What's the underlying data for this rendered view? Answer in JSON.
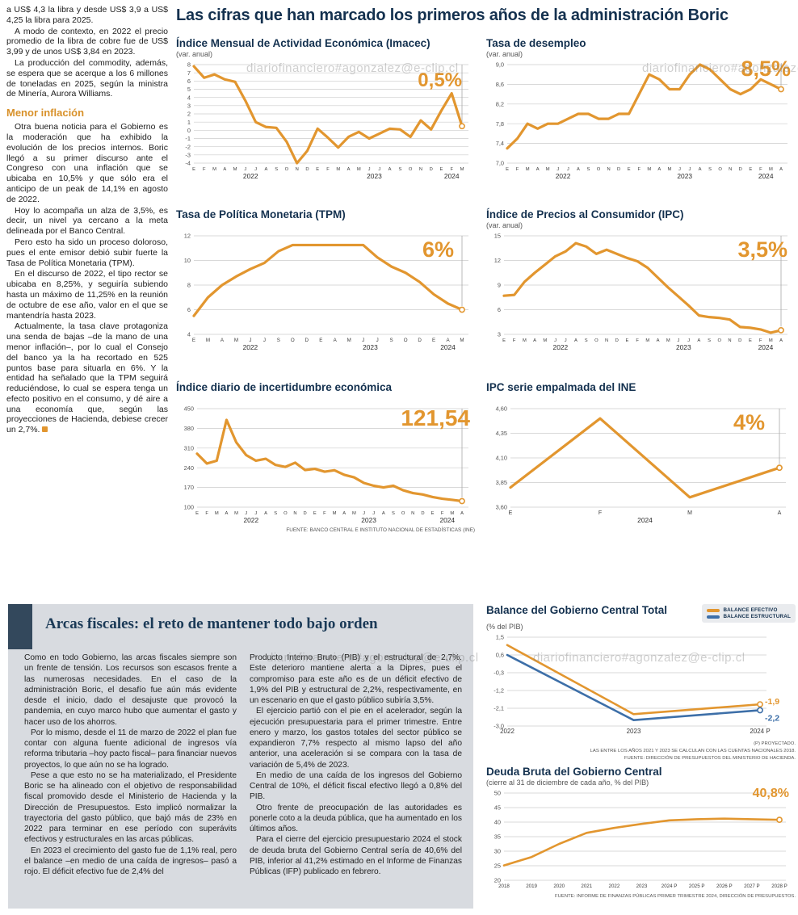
{
  "watermark": {
    "text": "diariofinanciero#agonzalez@e-clip.cl"
  },
  "colors": {
    "accent": "#E2962F",
    "navy": "#14314F",
    "blue": "#3D6FA8"
  },
  "main_title": "Las cifras que han marcado los primeros años de la administración Boric",
  "article": {
    "paragraphs": [
      "a US$ 4,3 la libra y desde US$ 3,9 a US$ 4,25 la libra para 2025.",
      "A modo de contexto, en 2022 el precio promedio de la libra de cobre fue de US$ 3,99 y de unos US$ 3,84 en 2023.",
      "La producción del commodity, además, se espera que se acerque a los 6 millones de toneladas en 2025, según la ministra de Minería, Aurora Williams."
    ],
    "heading": "Menor inflación",
    "paragraphs2": [
      "Otra buena noticia para el Gobierno es la moderación que ha exhibido la evolución de los precios internos. Boric llegó a su primer discurso ante el Congreso con una inflación que se ubicaba en 10,5% y que sólo era el anticipo de un peak de 14,1% en agosto de 2022.",
      "Hoy lo acompaña un alza de 3,5%, es decir, un nivel ya cercano a la meta delineada por el Banco Central.",
      "Pero esto ha sido un proceso doloroso, pues el ente emisor debió subir fuerte la Tasa de Política Monetaria (TPM).",
      "En el discurso de 2022, el tipo rector se ubicaba en 8,25%, y seguiría subiendo hasta un máximo de 11,25% en la reunión de octubre de ese año, valor en el que se mantendría hasta 2023.",
      "Actualmente, la tasa clave protagoniza una senda de bajas –de la mano de una menor inflación–, por lo cual el Consejo del banco ya la ha recortado en 525 puntos base para situarla en 6%. Y la entidad ha señalado que la TPM seguirá reduciéndose, lo cual se espera tenga un efecto positivo en el consumo, y dé aire a una economía que, según las proyecciones de Hacienda, debiese crecer un 2,7%."
    ]
  },
  "source_top": "FUENTE: BANCO CENTRAL E INSTITUTO NACIONAL DE ESTADÍSTICAS (INE)",
  "fiscal_box": {
    "title": "Arcas fiscales: el reto de mantener todo bajo orden",
    "col1": [
      "Como en todo Gobierno, las arcas fiscales siempre son un frente de tensión. Los recursos son escasos frente a las numerosas necesidades. En el caso de la administración Boric, el desafío fue aún más evidente desde el inicio, dado el desajuste que provocó la pandemia, en cuyo marco hubo que aumentar el gasto y hacer uso de los ahorros.",
      "Por lo mismo, desde el 11 de marzo de 2022 el plan fue contar con alguna fuente adicional de ingresos vía reforma tributaria –hoy pacto fiscal– para financiar nuevos proyectos, lo que aún no se ha logrado.",
      "Pese a que esto no se ha materializado, el Presidente Boric se ha alineado con el objetivo de responsabilidad fiscal promovido desde el Ministerio de Hacienda y la Dirección de Presupuestos. Esto implicó normalizar la trayectoria del gasto público, que bajó más de 23% en 2022 para terminar en ese período con superávits efectivos y estructurales en las arcas públicas.",
      "En 2023 el crecimiento del gasto fue de 1,1% real, pero el balance –en medio de una caída de ingresos– pasó a rojo. El déficit efectivo fue de 2,4% del"
    ],
    "col2": [
      "Producto Interno Bruto (PIB) y el estructural de 2,7%. Este deterioro mantiene alerta a la Dipres, pues el compromiso para este año es de un déficit efectivo de 1,9% del PIB y estructural de 2,2%, respectivamente, en un escenario en que el gasto público subiría 3,5%.",
      "El ejercicio partió con el pie en el acelerador, según la ejecución presupuestaria para el primer trimestre. Entre enero y marzo, los gastos totales del sector público se expandieron 7,7% respecto al mismo lapso del año anterior, una aceleración si se compara con la tasa de variación de 5,4% de 2023.",
      "En medio de una caída de los ingresos del Gobierno Central de 10%, el déficit fiscal efectivo llegó a 0,8% del PIB.",
      "Otro frente de preocupación de las autoridades es ponerle coto a la deuda pública, que ha aumentado en los últimos años.",
      "Para el cierre del ejercicio presupuestario 2024 el stock de deuda bruta del Gobierno Central sería de 40,6% del PIB, inferior al 41,2% estimado en el Informe de Finanzas Públicas (IFP) publicado en febrero."
    ]
  },
  "legend": [
    {
      "label": "BALANCE EFECTIVO",
      "color": "#E2962F"
    },
    {
      "label": "BALANCE ESTRUCTURAL",
      "color": "#3D6FA8"
    }
  ],
  "balance_notes": [
    "(P) PROYECTADO.",
    "LAS ENTRE LOS AÑOS 2021 Y 2023 SE CALCULAN  CON LAS CUENTAS NACIONALES 2018.",
    "FUENTE: DIRECCIÓN DE PRESUPUESTOS DEL MINISTERIO DE HACIENDA."
  ],
  "deuda_note": "FUENTE: INFORME DE FINANZAS PÚBLICAS PRIMER TRIMESTRE 2024, DIRECCIÓN DE PRESUPUESTOS.",
  "chart_data": [
    {
      "type": "line",
      "title": "Índice Mensual de Actividad Económica (Imacec)",
      "subtitle": "(var. anual)",
      "big_value": "0,5%",
      "ylim": [
        -4,
        8
      ],
      "ytick_values": [
        8,
        7,
        6,
        5,
        4,
        3,
        2,
        1,
        0,
        -1,
        -2,
        -3,
        -4
      ],
      "ytick_labels": [
        "8",
        "7",
        "6",
        "5",
        "4",
        "3",
        "2",
        "1",
        "0",
        "-1",
        "-2",
        "-3",
        "-4"
      ],
      "x": [
        "E",
        "F",
        "M",
        "A",
        "M",
        "J",
        "J",
        "A",
        "S",
        "O",
        "N",
        "D",
        "E",
        "F",
        "M",
        "A",
        "M",
        "J",
        "J",
        "A",
        "S",
        "O",
        "N",
        "D",
        "E",
        "F",
        "M"
      ],
      "year_ranges": [
        {
          "label": "2022",
          "from": 0,
          "to": 11
        },
        {
          "label": "2023",
          "from": 12,
          "to": 23
        },
        {
          "label": "2024",
          "from": 24,
          "to": 26
        }
      ],
      "series": [
        {
          "name": "Imacec",
          "color": "#E2962F",
          "values": [
            7.8,
            6.4,
            6.8,
            6.2,
            5.9,
            3.6,
            1.0,
            0.4,
            0.3,
            -1.4,
            -4.0,
            -2.5,
            0.2,
            -0.9,
            -2.1,
            -0.8,
            -0.2,
            -1.0,
            -0.4,
            0.2,
            0.1,
            -0.8,
            1.2,
            0.1,
            2.4,
            4.5,
            0.5
          ]
        }
      ]
    },
    {
      "type": "line",
      "title": "Tasa de desempleo",
      "subtitle": "(var. anual)",
      "big_value": "8,5%",
      "ylim": [
        7.0,
        9.0
      ],
      "ytick_values": [
        9.0,
        8.6,
        8.2,
        7.8,
        7.4,
        7.0
      ],
      "ytick_labels": [
        "9,0",
        "8,6",
        "8,2",
        "7,8",
        "7,4",
        "7,0"
      ],
      "x": [
        "E",
        "F",
        "M",
        "A",
        "M",
        "J",
        "J",
        "A",
        "S",
        "O",
        "N",
        "D",
        "E",
        "F",
        "M",
        "A",
        "M",
        "J",
        "J",
        "A",
        "S",
        "O",
        "N",
        "D",
        "E",
        "F",
        "M",
        "A"
      ],
      "year_ranges": [
        {
          "label": "2022",
          "from": 0,
          "to": 11
        },
        {
          "label": "2023",
          "from": 12,
          "to": 23
        },
        {
          "label": "2024",
          "from": 24,
          "to": 27
        }
      ],
      "series": [
        {
          "name": "Desempleo",
          "color": "#E2962F",
          "values": [
            7.3,
            7.5,
            7.8,
            7.7,
            7.8,
            7.8,
            7.9,
            8.0,
            8.0,
            7.9,
            7.9,
            8.0,
            8.0,
            8.4,
            8.8,
            8.7,
            8.5,
            8.5,
            8.8,
            9.0,
            8.9,
            8.7,
            8.5,
            8.4,
            8.5,
            8.7,
            8.6,
            8.5
          ]
        }
      ]
    },
    {
      "type": "line",
      "title": "Tasa de Política Monetaria (TPM)",
      "subtitle": "",
      "big_value": "6%",
      "ylim": [
        4,
        12
      ],
      "ytick_values": [
        12,
        10,
        8,
        6,
        4
      ],
      "ytick_labels": [
        "12",
        "10",
        "8",
        "6",
        "4"
      ],
      "x": [
        "E",
        "M",
        "A",
        "M",
        "J",
        "J",
        "S",
        "O",
        "D",
        "E",
        "A",
        "M",
        "J",
        "J",
        "S",
        "O",
        "D",
        "E",
        "A",
        "M"
      ],
      "year_ranges": [
        {
          "label": "2022",
          "from": 0,
          "to": 8
        },
        {
          "label": "2023",
          "from": 9,
          "to": 16
        },
        {
          "label": "2024",
          "from": 17,
          "to": 19
        }
      ],
      "series": [
        {
          "name": "TPM",
          "color": "#E2962F",
          "values": [
            5.5,
            7.0,
            8.0,
            8.7,
            9.3,
            9.8,
            10.75,
            11.25,
            11.25,
            11.25,
            11.25,
            11.25,
            11.25,
            10.25,
            9.5,
            9.0,
            8.25,
            7.25,
            6.5,
            6.0
          ]
        }
      ]
    },
    {
      "type": "line",
      "title": "Índice de Precios al Consumidor (IPC)",
      "subtitle": "(var. anual)",
      "big_value": "3,5%",
      "ylim": [
        3,
        15
      ],
      "ytick_values": [
        15,
        12,
        9,
        6,
        3
      ],
      "ytick_labels": [
        "15",
        "12",
        "9",
        "6",
        "3"
      ],
      "x": [
        "E",
        "F",
        "M",
        "A",
        "M",
        "J",
        "J",
        "A",
        "S",
        "O",
        "N",
        "D",
        "E",
        "F",
        "M",
        "A",
        "M",
        "J",
        "J",
        "A",
        "S",
        "O",
        "N",
        "D",
        "E",
        "F",
        "M",
        "A"
      ],
      "year_ranges": [
        {
          "label": "2022",
          "from": 0,
          "to": 11
        },
        {
          "label": "2023",
          "from": 12,
          "to": 23
        },
        {
          "label": "2024",
          "from": 24,
          "to": 27
        }
      ],
      "series": [
        {
          "name": "IPC",
          "color": "#E2962F",
          "values": [
            7.7,
            7.8,
            9.4,
            10.5,
            11.5,
            12.5,
            13.1,
            14.1,
            13.7,
            12.8,
            13.3,
            12.8,
            12.3,
            11.9,
            11.1,
            9.9,
            8.7,
            7.6,
            6.5,
            5.3,
            5.1,
            5.0,
            4.8,
            3.9,
            3.8,
            3.6,
            3.2,
            3.5
          ]
        }
      ]
    },
    {
      "type": "line",
      "title": "Índice diario de incertidumbre económica",
      "subtitle": "",
      "big_value": "121,54",
      "ylim": [
        100,
        450
      ],
      "ytick_values": [
        450,
        380,
        310,
        240,
        170,
        100
      ],
      "ytick_labels": [
        "450",
        "380",
        "310",
        "240",
        "170",
        "100"
      ],
      "x": [
        "E",
        "F",
        "M",
        "A",
        "M",
        "J",
        "J",
        "A",
        "S",
        "O",
        "N",
        "D",
        "E",
        "F",
        "M",
        "A",
        "M",
        "J",
        "J",
        "A",
        "S",
        "O",
        "N",
        "D",
        "E",
        "F",
        "M",
        "A"
      ],
      "year_ranges": [
        {
          "label": "2022",
          "from": 0,
          "to": 11
        },
        {
          "label": "2023",
          "from": 12,
          "to": 23
        },
        {
          "label": "2024",
          "from": 24,
          "to": 27
        }
      ],
      "series": [
        {
          "name": "Incertidumbre",
          "color": "#E2962F",
          "values": [
            290,
            255,
            265,
            410,
            330,
            285,
            265,
            272,
            250,
            243,
            258,
            232,
            236,
            226,
            231,
            215,
            206,
            186,
            176,
            170,
            176,
            160,
            150,
            145,
            136,
            130,
            126,
            121.54
          ]
        }
      ]
    },
    {
      "type": "line",
      "title": "IPC serie empalmada del INE",
      "subtitle": "",
      "big_value": "4%",
      "ylim": [
        3.6,
        4.6
      ],
      "ytick_values": [
        4.6,
        4.35,
        4.1,
        3.85,
        3.6
      ],
      "ytick_labels": [
        "4,60",
        "4,35",
        "4,10",
        "3,85",
        "3,60"
      ],
      "x": [
        "E",
        "F",
        "M",
        "A"
      ],
      "year_ranges": [
        {
          "label": "2024",
          "from": 0,
          "to": 3
        }
      ],
      "series": [
        {
          "name": "IPC empalmada",
          "color": "#E2962F",
          "values": [
            3.8,
            4.5,
            3.7,
            4.0
          ]
        }
      ]
    },
    {
      "type": "line",
      "title": "Balance del Gobierno Central Total",
      "subtitle": "(% del PIB)",
      "big_value": "",
      "ylim": [
        -3.0,
        1.5
      ],
      "ytick_values": [
        1.5,
        0.6,
        -0.3,
        -1.2,
        -2.1,
        -3.0
      ],
      "ytick_labels": [
        "1,5",
        "0,6",
        "-0,3",
        "-1,2",
        "-2,1",
        "-3,0"
      ],
      "x": [
        "2022",
        "2023",
        "2024 P"
      ],
      "year_ranges": [],
      "series": [
        {
          "name": "Balance efectivo",
          "color": "#E2962F",
          "values": [
            1.1,
            -2.4,
            -1.9
          ],
          "end_label": "-1,9",
          "end_label_dy": -3
        },
        {
          "name": "Balance estructural",
          "color": "#3D6FA8",
          "values": [
            0.6,
            -2.7,
            -2.2
          ],
          "end_label": "-2,2",
          "end_label_dy": 10
        }
      ]
    },
    {
      "type": "line",
      "title": "Deuda Bruta del Gobierno Central",
      "subtitle": "(cierre al 31 de diciembre de cada año, % del PIB)",
      "big_value": "40,8%",
      "ylim": [
        20,
        50
      ],
      "ytick_values": [
        50,
        45,
        40,
        35,
        30,
        25,
        20
      ],
      "ytick_labels": [
        "50",
        "45",
        "40",
        "35",
        "30",
        "25",
        "20"
      ],
      "x": [
        "2018",
        "2019",
        "2020",
        "2021",
        "2022",
        "2023",
        "2024 P",
        "2025 P",
        "2026 P",
        "2027 P",
        "2028 P"
      ],
      "year_ranges": [],
      "series": [
        {
          "name": "Deuda bruta",
          "color": "#E2962F",
          "values": [
            25.1,
            28.0,
            32.5,
            36.3,
            38.0,
            39.4,
            40.6,
            41.0,
            41.2,
            41.0,
            40.8
          ]
        }
      ]
    }
  ]
}
